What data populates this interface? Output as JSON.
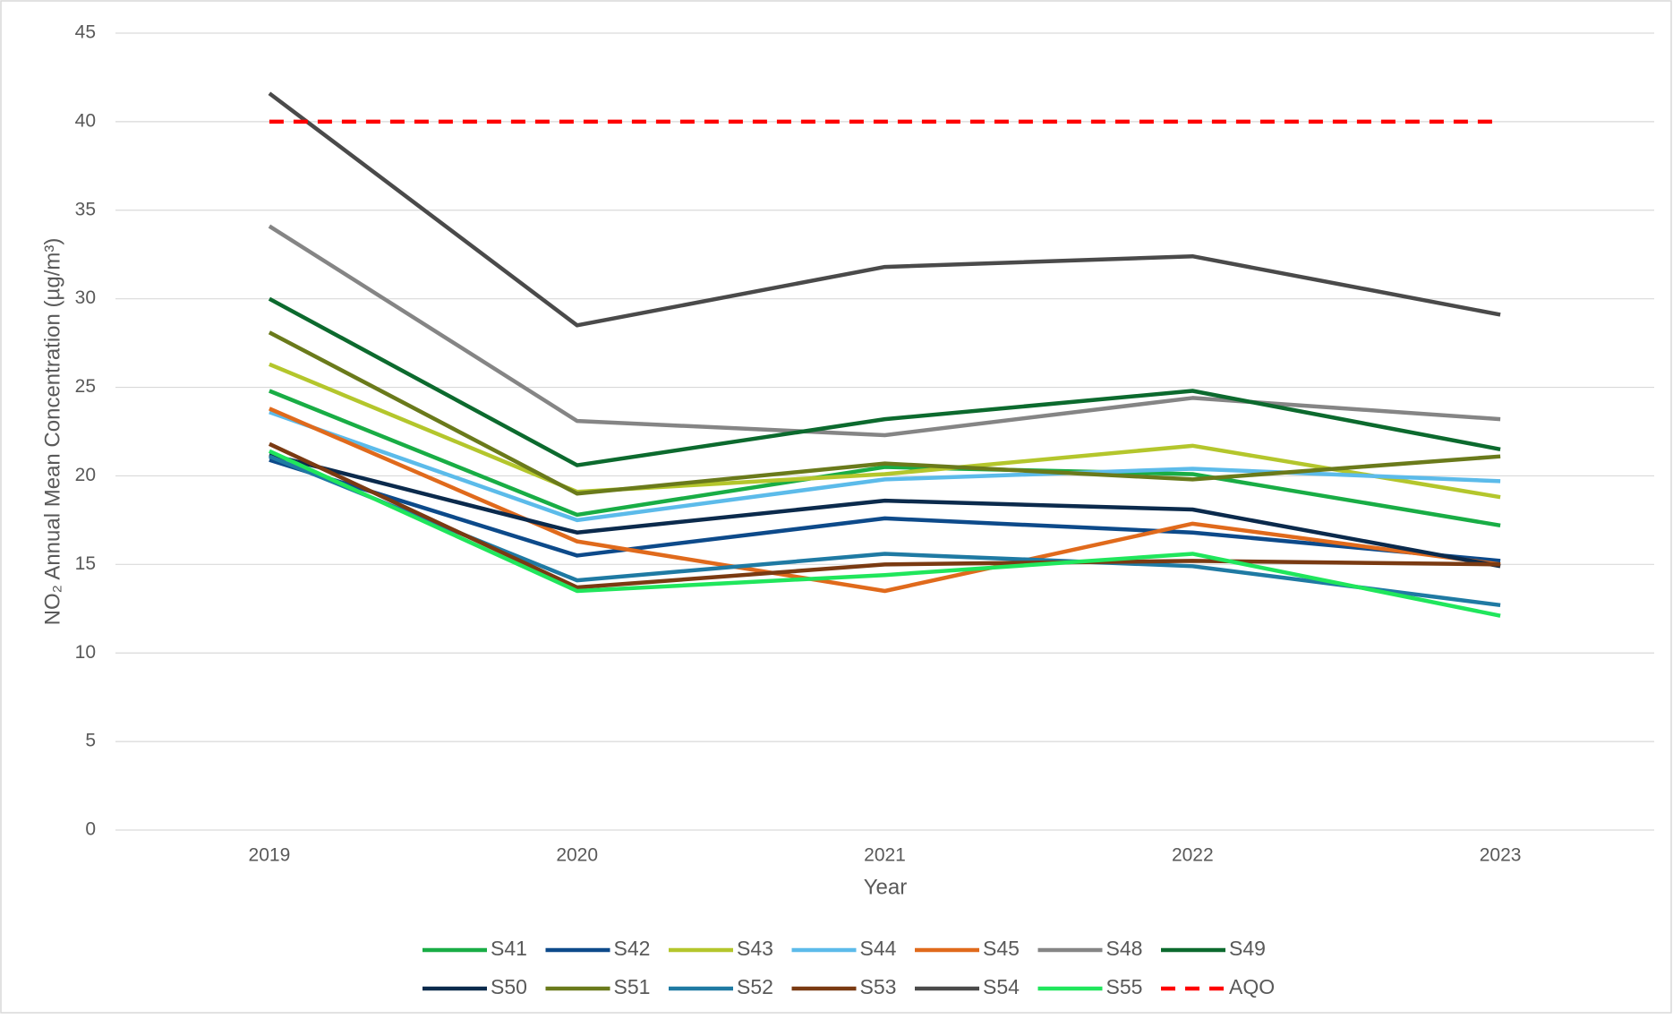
{
  "chart_data": {
    "type": "line",
    "xlabel": "Year",
    "ylabel": "NO₂ Annual Mean Concentration (µg/m³)",
    "categories": [
      "2019",
      "2020",
      "2021",
      "2022",
      "2023"
    ],
    "ylim": [
      0,
      45
    ],
    "yticks": [
      0,
      5,
      10,
      15,
      20,
      25,
      30,
      35,
      40,
      45
    ],
    "grid": true,
    "legend": "bottom",
    "series": [
      {
        "name": "S41",
        "color": "#19ad45",
        "values": [
          24.8,
          17.8,
          20.5,
          20.1,
          17.2
        ]
      },
      {
        "name": "S42",
        "color": "#0d4a8a",
        "values": [
          20.9,
          15.5,
          17.6,
          16.8,
          15.2
        ]
      },
      {
        "name": "S43",
        "color": "#b4c62c",
        "values": [
          26.3,
          19.1,
          20.1,
          21.7,
          18.8
        ]
      },
      {
        "name": "S44",
        "color": "#5cbbea",
        "values": [
          23.6,
          17.5,
          19.8,
          20.4,
          19.7
        ]
      },
      {
        "name": "S45",
        "color": "#e06a1c",
        "values": [
          23.8,
          16.3,
          13.5,
          17.3,
          15.0
        ]
      },
      {
        "name": "S48",
        "color": "#858585",
        "values": [
          34.1,
          23.1,
          22.3,
          24.4,
          23.2
        ]
      },
      {
        "name": "S49",
        "color": "#0c6a2e",
        "values": [
          30.0,
          20.6,
          23.2,
          24.8,
          21.5
        ]
      },
      {
        "name": "S50",
        "color": "#0b2a4c",
        "values": [
          21.2,
          16.8,
          18.6,
          18.1,
          14.9
        ]
      },
      {
        "name": "S51",
        "color": "#6a7a1b",
        "values": [
          28.1,
          19.0,
          20.7,
          19.8,
          21.1
        ]
      },
      {
        "name": "S52",
        "color": "#1f7aa3",
        "values": [
          21.1,
          14.1,
          15.6,
          14.9,
          12.7
        ]
      },
      {
        "name": "S53",
        "color": "#7a3a12",
        "values": [
          21.8,
          13.7,
          15.0,
          15.2,
          15.0
        ]
      },
      {
        "name": "S54",
        "color": "#4a4a4a",
        "values": [
          41.6,
          28.5,
          31.8,
          32.4,
          29.1
        ]
      },
      {
        "name": "S55",
        "color": "#20e65c",
        "values": [
          21.4,
          13.5,
          14.4,
          15.6,
          12.1
        ]
      },
      {
        "name": "AQO",
        "color": "#ff0000",
        "dashed": true,
        "values": [
          40,
          40,
          40,
          40,
          40
        ]
      }
    ]
  }
}
